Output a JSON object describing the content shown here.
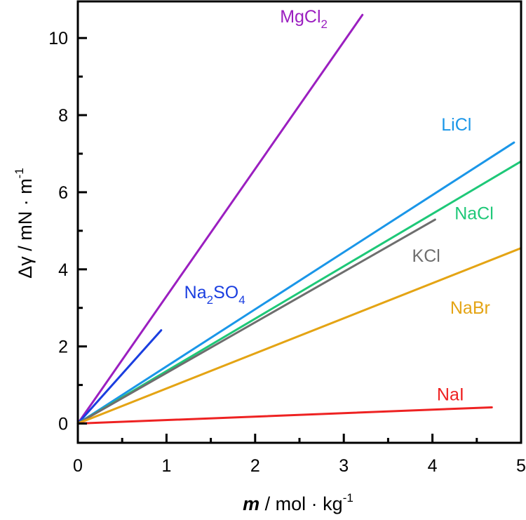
{
  "chart_data": {
    "type": "line",
    "title": "",
    "xlabel": {
      "symbol": "m",
      "rest": " / mol · kg",
      "sup": "-1"
    },
    "ylabel": {
      "main": "Δγ / mN · m",
      "sup": "-1"
    },
    "xlim": [
      0,
      5
    ],
    "ylim": [
      -0.5,
      10.95
    ],
    "x_ticks": [
      0,
      1,
      2,
      3,
      4,
      5
    ],
    "x_tick_labels": [
      "0",
      "1",
      "2",
      "3",
      "4",
      "5"
    ],
    "x_minor_ticks": [
      0.5,
      1.5,
      2.5,
      3.5,
      4.5
    ],
    "y_ticks": [
      0,
      2,
      4,
      6,
      8,
      10
    ],
    "y_tick_labels": [
      "0",
      "2",
      "4",
      "6",
      "8",
      "10"
    ],
    "y_minor_ticks": [
      1,
      3,
      5,
      7,
      9
    ],
    "grid": false,
    "legend": "inline-labels",
    "series": [
      {
        "name": "MgCl2",
        "label": {
          "base": "MgCl",
          "sub1": "2",
          "mid": "",
          "sub2": ""
        },
        "color": "#9b1fc0",
        "x": [
          0,
          3.21
        ],
        "y": [
          0,
          10.6
        ]
      },
      {
        "name": "Na2SO4",
        "label": {
          "base": "Na",
          "sub1": "2",
          "mid": "SO",
          "sub2": "4"
        },
        "color": "#1a3ee0",
        "x": [
          0,
          0.94
        ],
        "y": [
          0,
          2.42
        ]
      },
      {
        "name": "LiCl",
        "label": {
          "base": "LiCl",
          "sub1": "",
          "mid": "",
          "sub2": ""
        },
        "color": "#1a96e8",
        "x": [
          0,
          4.92
        ],
        "y": [
          0,
          7.29
        ]
      },
      {
        "name": "NaCl",
        "label": {
          "base": "NaCl",
          "sub1": "",
          "mid": "",
          "sub2": ""
        },
        "color": "#1ec878",
        "x": [
          0,
          5.0
        ],
        "y": [
          0,
          6.8
        ]
      },
      {
        "name": "KCl",
        "label": {
          "base": "KCl",
          "sub1": "",
          "mid": "",
          "sub2": ""
        },
        "color": "#6e6e6e",
        "x": [
          0,
          4.03
        ],
        "y": [
          0,
          5.29
        ]
      },
      {
        "name": "NaBr",
        "label": {
          "base": "NaBr",
          "sub1": "",
          "mid": "",
          "sub2": ""
        },
        "color": "#e4a414",
        "x": [
          0,
          5.0
        ],
        "y": [
          0,
          4.55
        ]
      },
      {
        "name": "NaI",
        "label": {
          "base": "NaI",
          "sub1": "",
          "mid": "",
          "sub2": ""
        },
        "color": "#ee2222",
        "x": [
          0,
          4.67
        ],
        "y": [
          0,
          0.42
        ]
      }
    ],
    "annotations": [
      {
        "series": "MgCl2",
        "x": 2.28,
        "y": 10.4
      },
      {
        "series": "Na2SO4",
        "x": 1.2,
        "y": 3.25
      },
      {
        "series": "LiCl",
        "x": 4.1,
        "y": 7.6
      },
      {
        "series": "NaCl",
        "x": 4.25,
        "y": 5.3
      },
      {
        "series": "KCl",
        "x": 3.77,
        "y": 4.2
      },
      {
        "series": "NaBr",
        "x": 4.2,
        "y": 2.85
      },
      {
        "series": "NaI",
        "x": 4.05,
        "y": 0.6
      }
    ]
  }
}
